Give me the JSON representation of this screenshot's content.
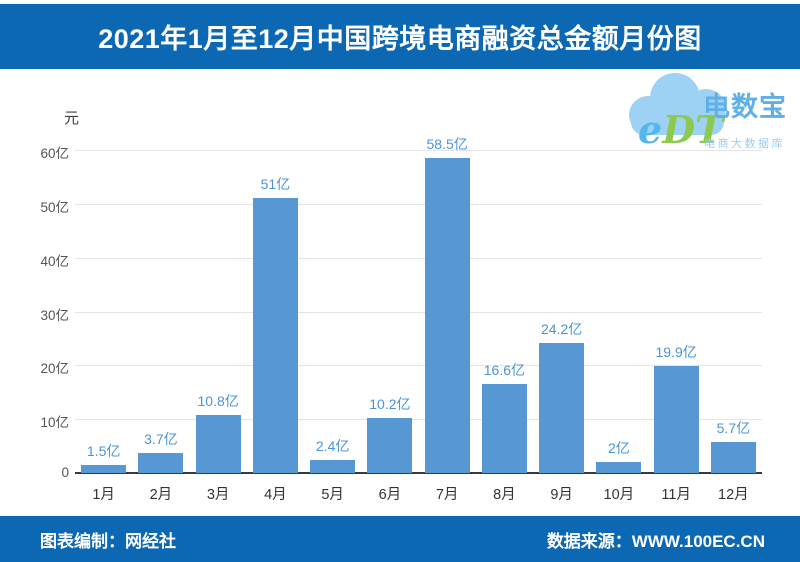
{
  "header": {
    "title": "2021年1月至12月中国跨境电商融资总金额月份图"
  },
  "logo": {
    "edt_e": "e",
    "edt_dt": "DT",
    "name": "电数宝",
    "subtitle": "电商大数据库"
  },
  "footer": {
    "left": "图表编制：网经社",
    "right": "数据来源：WWW.100EC.CN"
  },
  "colors": {
    "header_bg": "#0c68b3",
    "footer_bg": "#0c68b3",
    "bar": "#5697d4",
    "value_label": "#4a94d8",
    "gridline": "#e4e4e8",
    "axis_line": "#3a3a3a",
    "logo_cloud": "#9ed2f4",
    "logo_e": "#53b7ef",
    "logo_dt": "#8cc94f",
    "logo_name": "#5fb0ea",
    "logo_subtitle": "#9fcbed"
  },
  "chart_data": {
    "type": "bar",
    "title": "2021年1月至12月中国跨境电商融资总金额月份图",
    "unit_label": "元",
    "categories": [
      "1月",
      "2月",
      "3月",
      "4月",
      "5月",
      "6月",
      "7月",
      "8月",
      "9月",
      "10月",
      "11月",
      "12月"
    ],
    "values": [
      1.5,
      3.7,
      10.8,
      51,
      2.4,
      10.2,
      58.5,
      16.6,
      24.2,
      2,
      19.9,
      5.7
    ],
    "value_labels": [
      "1.5亿",
      "3.7亿",
      "10.8亿",
      "51亿",
      "2.4亿",
      "10.2亿",
      "58.5亿",
      "16.6亿",
      "24.2亿",
      "2亿",
      "19.9亿",
      "5.7亿"
    ],
    "yticks": {
      "values": [
        0,
        10,
        20,
        30,
        40,
        50,
        60
      ],
      "labels": [
        "0",
        "10亿",
        "20亿",
        "30亿",
        "40亿",
        "50亿",
        "60亿"
      ]
    },
    "ylim": [
      0,
      60
    ],
    "grid": true,
    "legend": "none",
    "xlabel": "",
    "ylabel": "元"
  }
}
